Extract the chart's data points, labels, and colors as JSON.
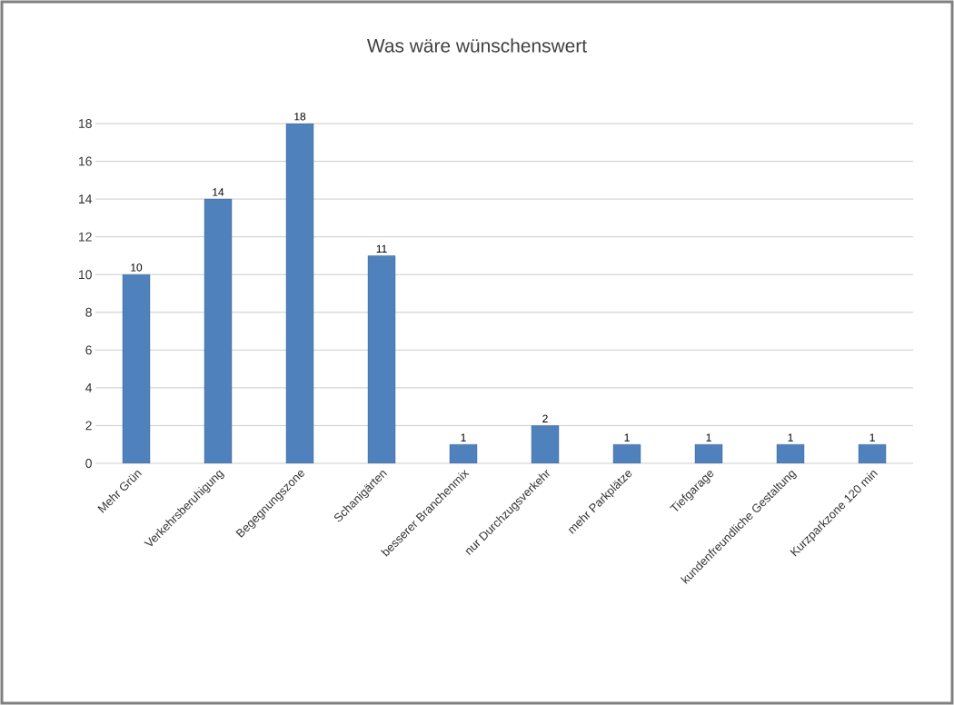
{
  "chart_data": {
    "type": "bar",
    "title": "Was wäre wünschenswert",
    "categories": [
      "Mehr Grün",
      "Verkehrsberuhigung",
      "Begegnungszone",
      "Schanigärten",
      "besserer Branchenmix",
      "nur Durchzugsverkehr",
      "mehr Parkplätze",
      "Tiefgarage",
      "kundenfreundliche Gestaltung",
      "Kurzparkzone 120 min"
    ],
    "values": [
      10,
      14,
      18,
      11,
      1,
      2,
      1,
      1,
      1,
      1
    ],
    "color": "#4f81bd",
    "ylim": [
      0,
      18
    ],
    "yticks": [
      0,
      2,
      4,
      6,
      8,
      10,
      12,
      14,
      16,
      18
    ],
    "grid": "y",
    "data_labels": true
  }
}
